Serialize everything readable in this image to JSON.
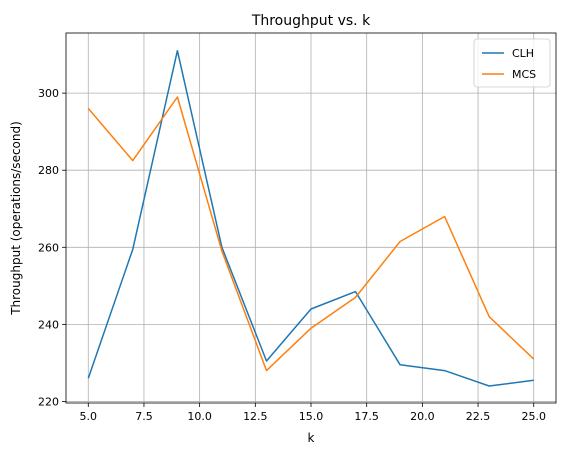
{
  "chart_data": {
    "type": "line",
    "title": "Throughput vs. k",
    "xlabel": "k",
    "ylabel": "Throughput (operations/second)",
    "x": [
      5,
      7,
      9,
      11,
      13,
      15,
      17,
      19,
      21,
      23,
      25
    ],
    "xlim": [
      4.0,
      26.0
    ],
    "ylim": [
      219.6,
      315.6
    ],
    "xticks": [
      5.0,
      7.5,
      10.0,
      12.5,
      15.0,
      17.5,
      20.0,
      22.5,
      25.0
    ],
    "xtick_labels": [
      "5.0",
      "7.5",
      "10.0",
      "12.5",
      "15.0",
      "17.5",
      "20.0",
      "22.5",
      "25.0"
    ],
    "yticks": [
      220,
      240,
      260,
      280,
      300
    ],
    "ytick_labels": [
      "220",
      "240",
      "260",
      "280",
      "300"
    ],
    "grid": true,
    "legend_position": "top-right",
    "series": [
      {
        "name": "CLH",
        "color": "#1f77b4",
        "values": [
          226.0,
          259.5,
          311.0,
          260.0,
          230.5,
          244.0,
          248.5,
          229.5,
          228.0,
          224.0,
          225.5
        ]
      },
      {
        "name": "MCS",
        "color": "#ff7f0e",
        "values": [
          296.0,
          282.5,
          299.0,
          259.0,
          228.0,
          239.0,
          247.0,
          261.5,
          268.0,
          242.0,
          231.0
        ]
      }
    ]
  }
}
